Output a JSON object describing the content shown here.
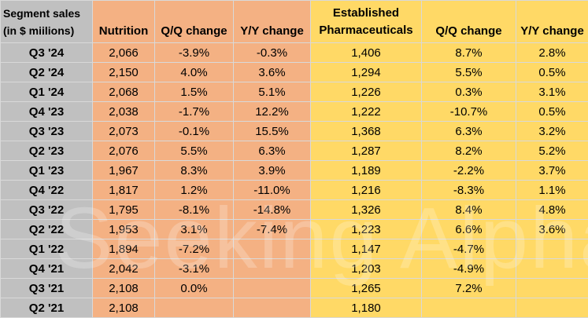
{
  "table": {
    "header": [
      "Segment sales\n(in $ miilions)",
      "Nutrition",
      "Q/Q change",
      "Y/Y change",
      "Established\nPharmaceuticals",
      "Q/Q change",
      "Y/Y change"
    ],
    "rows": [
      [
        "Q3 '24",
        "2,066",
        "-3.9%",
        "-0.3%",
        "1,406",
        "8.7%",
        "2.8%"
      ],
      [
        "Q2 '24",
        "2,150",
        "4.0%",
        "3.6%",
        "1,294",
        "5.5%",
        "0.5%"
      ],
      [
        "Q1 '24",
        "2,068",
        "1.5%",
        "5.1%",
        "1,226",
        "0.3%",
        "3.1%"
      ],
      [
        "Q4 '23",
        "2,038",
        "-1.7%",
        "12.2%",
        "1,222",
        "-10.7%",
        "0.5%"
      ],
      [
        "Q3 '23",
        "2,073",
        "-0.1%",
        "15.5%",
        "1,368",
        "6.3%",
        "3.2%"
      ],
      [
        "Q2 '23",
        "2,076",
        "5.5%",
        "6.3%",
        "1,287",
        "8.2%",
        "5.2%"
      ],
      [
        "Q1 '23",
        "1,967",
        "8.3%",
        "3.9%",
        "1,189",
        "-2.2%",
        "3.7%"
      ],
      [
        "Q4 '22",
        "1,817",
        "1.2%",
        "-11.0%",
        "1,216",
        "-8.3%",
        "1.1%"
      ],
      [
        "Q3 '22",
        "1,795",
        "-8.1%",
        "-14.8%",
        "1,326",
        "8.4%",
        "4.8%"
      ],
      [
        "Q2 '22",
        "1,953",
        "3.1%",
        "-7.4%",
        "1,223",
        "6.6%",
        "3.6%"
      ],
      [
        "Q1 '22",
        "1,894",
        "-7.2%",
        null,
        "1,147",
        "-4.7%",
        null
      ],
      [
        "Q4 '21",
        "2,042",
        "-3.1%",
        null,
        "1,203",
        "-4.9%",
        null
      ],
      [
        "Q3 '21",
        "2,108",
        "0.0%",
        null,
        "1,265",
        "7.2%",
        null
      ],
      [
        "Q2 '21",
        "2,108",
        null,
        null,
        "1,180",
        null,
        null
      ]
    ]
  },
  "watermark": "Seeking Alpha"
}
